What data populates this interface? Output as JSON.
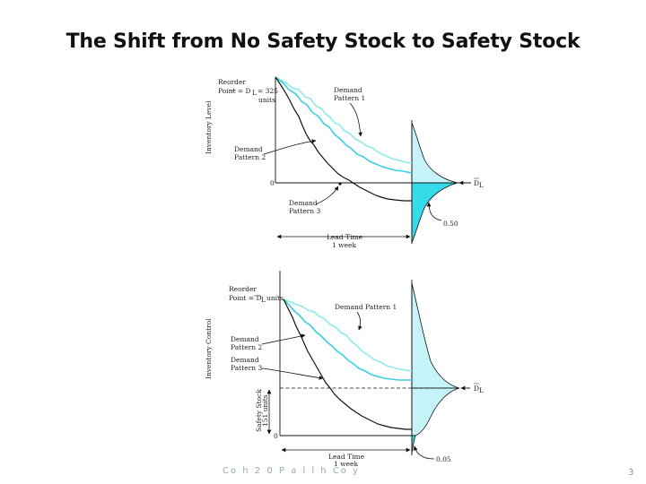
{
  "slide": {
    "title": "The Shift from No Safety Stock to Safety Stock",
    "footer_text": "Co h 2 0 P a l l h Co y",
    "page_number": "3"
  },
  "top_diagram": {
    "reorder_label_1": "Reorder",
    "reorder_label_2": "Point = D",
    "reorder_label_3": "= 325",
    "reorder_label_4": "units",
    "y_axis_label": "Inventory Level",
    "pattern1_label_1": "Demand",
    "pattern1_label_2": "Pattern 1",
    "pattern2_label_1": "Demand",
    "pattern2_label_2": "Pattern 2",
    "pattern3_label_1": "Demand",
    "pattern3_label_2": "Pattern 3",
    "zero_label": "0",
    "lead_time_1": "Lead Time",
    "lead_time_2": "1 week",
    "dist_mean_label": "D",
    "dist_sub": "L",
    "dist_prob_label": "0.50"
  },
  "bottom_diagram": {
    "reorder_label_1": "Reorder",
    "reorder_label_2": "Point = D",
    "reorder_label_3": "units",
    "y_axis_label": "Inventory Control",
    "pattern1_label": "Demand Pattern 1",
    "pattern2_label_1": "Demand",
    "pattern2_label_2": "Pattern 2",
    "pattern3_label_1": "Demand",
    "pattern3_label_2": "Pattern 3",
    "safety_stock_1": "Safety Stock",
    "safety_stock_2": "151 units",
    "zero_label": "0",
    "lead_time_1": "Lead Time",
    "lead_time_2": "1 week",
    "dist_mean_label": "D",
    "dist_sub": "L",
    "dist_prob_label": "0.05"
  },
  "colors": {
    "pattern1": "#8fe8ef",
    "pattern2": "#3ccfe0",
    "pattern3": "#111111",
    "dist_fill_light": "#c6f3f8",
    "dist_fill_dark": "#36dbea"
  }
}
